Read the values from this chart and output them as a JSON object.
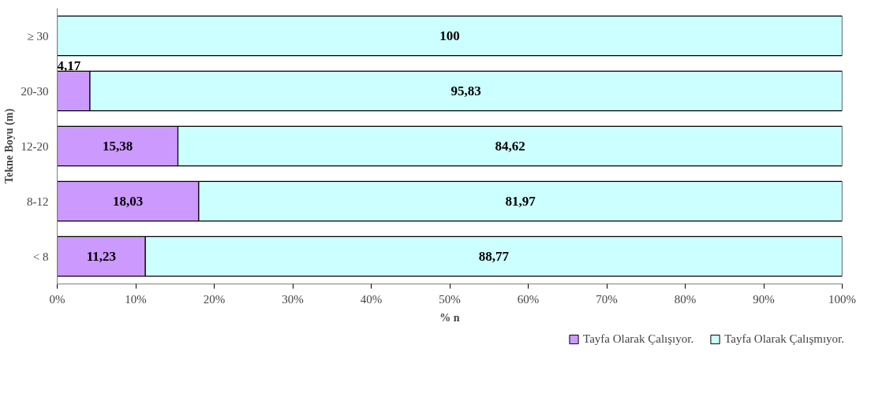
{
  "chart_data": {
    "type": "bar",
    "orientation": "horizontal",
    "stacked": true,
    "xlabel": "% n",
    "ylabel": "Tekne Boyu (m)",
    "categories": [
      "≥ 30",
      "20-30",
      "12-20",
      "8-12",
      "< 8"
    ],
    "series": [
      {
        "name": "Tayfa Olarak Çalışıyor.",
        "color": "#cc99ff",
        "values": [
          0,
          4.17,
          15.38,
          18.03,
          11.23
        ],
        "value_labels": [
          null,
          "4,17",
          "15,38",
          "18,03",
          "11,23"
        ]
      },
      {
        "name": "Tayfa Olarak Çalışmıyor.",
        "color": "#ccffff",
        "values": [
          100,
          95.83,
          84.62,
          81.97,
          88.77
        ],
        "value_labels": [
          "100",
          "95,83",
          "84,62",
          "81,97",
          "88,77"
        ]
      }
    ],
    "xlim": [
      0,
      100
    ],
    "xticks": [
      {
        "value": 0,
        "label": "0%"
      },
      {
        "value": 10,
        "label": "10%"
      },
      {
        "value": 20,
        "label": "20%"
      },
      {
        "value": 30,
        "label": "30%"
      },
      {
        "value": 40,
        "label": "40%"
      },
      {
        "value": 50,
        "label": "50%"
      },
      {
        "value": 60,
        "label": "60%"
      },
      {
        "value": 70,
        "label": "70%"
      },
      {
        "value": 80,
        "label": "80%"
      },
      {
        "value": 90,
        "label": "90%"
      },
      {
        "value": 100,
        "label": "100%"
      }
    ],
    "grid": false,
    "legend": "bottom right"
  }
}
